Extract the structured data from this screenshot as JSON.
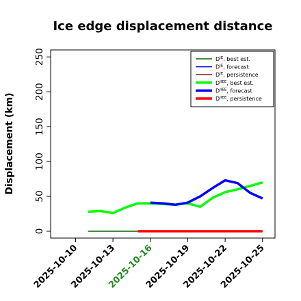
{
  "chart_data": {
    "type": "line",
    "title": "Ice edge displacement distance",
    "ylabel": "Displacement (km)",
    "xlabel": "",
    "ylim": [
      0,
      260
    ],
    "yticks": [
      0,
      50,
      100,
      150,
      200,
      250
    ],
    "xlim": [
      "2025-10-08",
      "2025-10-26"
    ],
    "xticks": [
      "2025-10-10",
      "2025-10-13",
      "2025-10-16",
      "2025-10-19",
      "2025-10-22",
      "2025-10-25"
    ],
    "highlight_tick": "2025-10-16",
    "highlight_color": "#228b22",
    "grid": false,
    "legend_position": "top-right",
    "series": [
      {
        "name": "D^IE, best est.",
        "color": "#006400",
        "width": "thin",
        "x": [
          "2025-10-11",
          "2025-10-15"
        ],
        "y": [
          0,
          0
        ]
      },
      {
        "name": "D^IE, forecast",
        "color": "#0000ff",
        "width": "thin",
        "x": [],
        "y": []
      },
      {
        "name": "D^IE, persistence",
        "color": "#8b0000",
        "width": "thin",
        "x": [],
        "y": []
      },
      {
        "name": "D^IIEE, best est.",
        "color": "#00ff00",
        "width": "thick",
        "x": [
          "2025-10-11",
          "2025-10-12",
          "2025-10-13",
          "2025-10-14",
          "2025-10-15",
          "2025-10-16",
          "2025-10-17",
          "2025-10-18",
          "2025-10-19",
          "2025-10-20",
          "2025-10-21",
          "2025-10-22",
          "2025-10-23",
          "2025-10-24",
          "2025-10-25"
        ],
        "y": [
          28,
          29,
          26,
          34,
          40,
          40,
          39,
          38,
          40,
          35,
          48,
          56,
          60,
          65,
          70
        ]
      },
      {
        "name": "D^IIEE, forecast",
        "color": "#0000ff",
        "width": "thick",
        "x": [
          "2025-10-16",
          "2025-10-17",
          "2025-10-18",
          "2025-10-19",
          "2025-10-20",
          "2025-10-21",
          "2025-10-22",
          "2025-10-23",
          "2025-10-24",
          "2025-10-25"
        ],
        "y": [
          41,
          40,
          38,
          41,
          50,
          62,
          73,
          69,
          55,
          47
        ]
      },
      {
        "name": "D^IIEE, persistence",
        "color": "#ff0000",
        "width": "thick",
        "x": [
          "2025-10-15",
          "2025-10-25"
        ],
        "y": [
          0,
          0
        ]
      }
    ],
    "legend": [
      {
        "base": "D",
        "sup": "IE",
        "label": ", best est.",
        "color": "#006400",
        "width": "thin"
      },
      {
        "base": "D",
        "sup": "IE",
        "label": ", forecast",
        "color": "#0000ff",
        "width": "thin"
      },
      {
        "base": "D",
        "sup": "IE",
        "label": ", persistence",
        "color": "#8b0000",
        "width": "thin"
      },
      {
        "base": "D",
        "sup": "IIEE",
        "label": ", best est.",
        "color": "#00ff00",
        "width": "thick"
      },
      {
        "base": "D",
        "sup": "IIEE",
        "label": ", forecast",
        "color": "#0000ff",
        "width": "thick"
      },
      {
        "base": "D",
        "sup": "IIEE",
        "label": ", persistence",
        "color": "#ff0000",
        "width": "thick"
      }
    ]
  }
}
